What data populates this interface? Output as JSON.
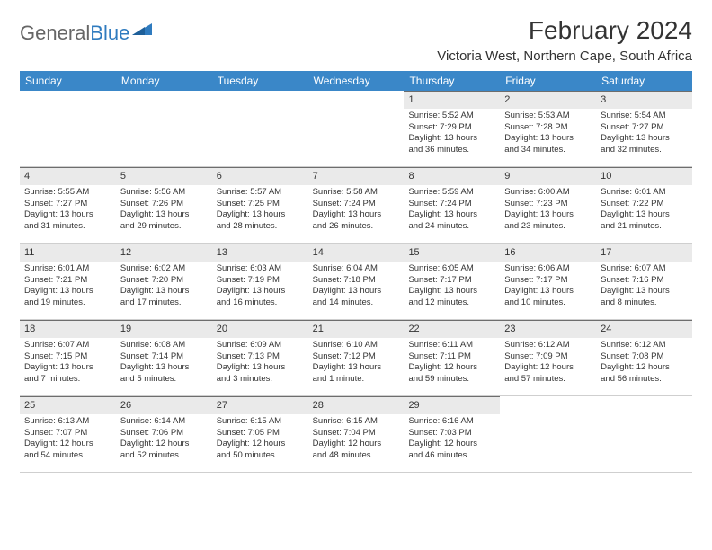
{
  "brand": {
    "part1": "General",
    "part2": "Blue"
  },
  "title": "February 2024",
  "location": "Victoria West, Northern Cape, South Africa",
  "colors": {
    "header_bg": "#3a87c8",
    "header_text": "#ffffff",
    "daynum_bg": "#eaeaea",
    "daynum_border": "#6d6d6d",
    "text": "#333333",
    "logo_blue": "#2f7bbf"
  },
  "weekdays": [
    "Sunday",
    "Monday",
    "Tuesday",
    "Wednesday",
    "Thursday",
    "Friday",
    "Saturday"
  ],
  "weeks": [
    [
      null,
      null,
      null,
      null,
      {
        "d": "1",
        "sr": "Sunrise: 5:52 AM",
        "ss": "Sunset: 7:29 PM",
        "dl1": "Daylight: 13 hours",
        "dl2": "and 36 minutes."
      },
      {
        "d": "2",
        "sr": "Sunrise: 5:53 AM",
        "ss": "Sunset: 7:28 PM",
        "dl1": "Daylight: 13 hours",
        "dl2": "and 34 minutes."
      },
      {
        "d": "3",
        "sr": "Sunrise: 5:54 AM",
        "ss": "Sunset: 7:27 PM",
        "dl1": "Daylight: 13 hours",
        "dl2": "and 32 minutes."
      }
    ],
    [
      {
        "d": "4",
        "sr": "Sunrise: 5:55 AM",
        "ss": "Sunset: 7:27 PM",
        "dl1": "Daylight: 13 hours",
        "dl2": "and 31 minutes."
      },
      {
        "d": "5",
        "sr": "Sunrise: 5:56 AM",
        "ss": "Sunset: 7:26 PM",
        "dl1": "Daylight: 13 hours",
        "dl2": "and 29 minutes."
      },
      {
        "d": "6",
        "sr": "Sunrise: 5:57 AM",
        "ss": "Sunset: 7:25 PM",
        "dl1": "Daylight: 13 hours",
        "dl2": "and 28 minutes."
      },
      {
        "d": "7",
        "sr": "Sunrise: 5:58 AM",
        "ss": "Sunset: 7:24 PM",
        "dl1": "Daylight: 13 hours",
        "dl2": "and 26 minutes."
      },
      {
        "d": "8",
        "sr": "Sunrise: 5:59 AM",
        "ss": "Sunset: 7:24 PM",
        "dl1": "Daylight: 13 hours",
        "dl2": "and 24 minutes."
      },
      {
        "d": "9",
        "sr": "Sunrise: 6:00 AM",
        "ss": "Sunset: 7:23 PM",
        "dl1": "Daylight: 13 hours",
        "dl2": "and 23 minutes."
      },
      {
        "d": "10",
        "sr": "Sunrise: 6:01 AM",
        "ss": "Sunset: 7:22 PM",
        "dl1": "Daylight: 13 hours",
        "dl2": "and 21 minutes."
      }
    ],
    [
      {
        "d": "11",
        "sr": "Sunrise: 6:01 AM",
        "ss": "Sunset: 7:21 PM",
        "dl1": "Daylight: 13 hours",
        "dl2": "and 19 minutes."
      },
      {
        "d": "12",
        "sr": "Sunrise: 6:02 AM",
        "ss": "Sunset: 7:20 PM",
        "dl1": "Daylight: 13 hours",
        "dl2": "and 17 minutes."
      },
      {
        "d": "13",
        "sr": "Sunrise: 6:03 AM",
        "ss": "Sunset: 7:19 PM",
        "dl1": "Daylight: 13 hours",
        "dl2": "and 16 minutes."
      },
      {
        "d": "14",
        "sr": "Sunrise: 6:04 AM",
        "ss": "Sunset: 7:18 PM",
        "dl1": "Daylight: 13 hours",
        "dl2": "and 14 minutes."
      },
      {
        "d": "15",
        "sr": "Sunrise: 6:05 AM",
        "ss": "Sunset: 7:17 PM",
        "dl1": "Daylight: 13 hours",
        "dl2": "and 12 minutes."
      },
      {
        "d": "16",
        "sr": "Sunrise: 6:06 AM",
        "ss": "Sunset: 7:17 PM",
        "dl1": "Daylight: 13 hours",
        "dl2": "and 10 minutes."
      },
      {
        "d": "17",
        "sr": "Sunrise: 6:07 AM",
        "ss": "Sunset: 7:16 PM",
        "dl1": "Daylight: 13 hours",
        "dl2": "and 8 minutes."
      }
    ],
    [
      {
        "d": "18",
        "sr": "Sunrise: 6:07 AM",
        "ss": "Sunset: 7:15 PM",
        "dl1": "Daylight: 13 hours",
        "dl2": "and 7 minutes."
      },
      {
        "d": "19",
        "sr": "Sunrise: 6:08 AM",
        "ss": "Sunset: 7:14 PM",
        "dl1": "Daylight: 13 hours",
        "dl2": "and 5 minutes."
      },
      {
        "d": "20",
        "sr": "Sunrise: 6:09 AM",
        "ss": "Sunset: 7:13 PM",
        "dl1": "Daylight: 13 hours",
        "dl2": "and 3 minutes."
      },
      {
        "d": "21",
        "sr": "Sunrise: 6:10 AM",
        "ss": "Sunset: 7:12 PM",
        "dl1": "Daylight: 13 hours",
        "dl2": "and 1 minute."
      },
      {
        "d": "22",
        "sr": "Sunrise: 6:11 AM",
        "ss": "Sunset: 7:11 PM",
        "dl1": "Daylight: 12 hours",
        "dl2": "and 59 minutes."
      },
      {
        "d": "23",
        "sr": "Sunrise: 6:12 AM",
        "ss": "Sunset: 7:09 PM",
        "dl1": "Daylight: 12 hours",
        "dl2": "and 57 minutes."
      },
      {
        "d": "24",
        "sr": "Sunrise: 6:12 AM",
        "ss": "Sunset: 7:08 PM",
        "dl1": "Daylight: 12 hours",
        "dl2": "and 56 minutes."
      }
    ],
    [
      {
        "d": "25",
        "sr": "Sunrise: 6:13 AM",
        "ss": "Sunset: 7:07 PM",
        "dl1": "Daylight: 12 hours",
        "dl2": "and 54 minutes."
      },
      {
        "d": "26",
        "sr": "Sunrise: 6:14 AM",
        "ss": "Sunset: 7:06 PM",
        "dl1": "Daylight: 12 hours",
        "dl2": "and 52 minutes."
      },
      {
        "d": "27",
        "sr": "Sunrise: 6:15 AM",
        "ss": "Sunset: 7:05 PM",
        "dl1": "Daylight: 12 hours",
        "dl2": "and 50 minutes."
      },
      {
        "d": "28",
        "sr": "Sunrise: 6:15 AM",
        "ss": "Sunset: 7:04 PM",
        "dl1": "Daylight: 12 hours",
        "dl2": "and 48 minutes."
      },
      {
        "d": "29",
        "sr": "Sunrise: 6:16 AM",
        "ss": "Sunset: 7:03 PM",
        "dl1": "Daylight: 12 hours",
        "dl2": "and 46 minutes."
      },
      null,
      null
    ]
  ]
}
